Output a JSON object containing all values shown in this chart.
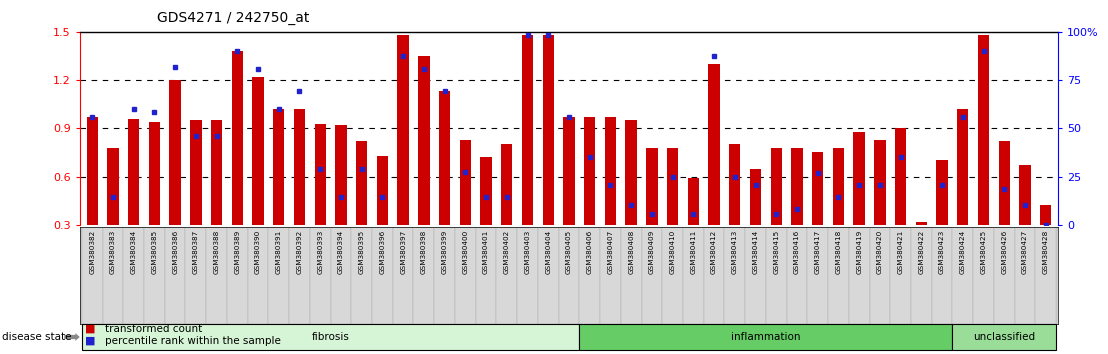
{
  "title": "GDS4271 / 242750_at",
  "samples": [
    "GSM380382",
    "GSM380383",
    "GSM380384",
    "GSM380385",
    "GSM380386",
    "GSM380387",
    "GSM380388",
    "GSM380389",
    "GSM380390",
    "GSM380391",
    "GSM380392",
    "GSM380393",
    "GSM380394",
    "GSM380395",
    "GSM380396",
    "GSM380397",
    "GSM380398",
    "GSM380399",
    "GSM380400",
    "GSM380401",
    "GSM380402",
    "GSM380403",
    "GSM380404",
    "GSM380405",
    "GSM380406",
    "GSM380407",
    "GSM380408",
    "GSM380409",
    "GSM380410",
    "GSM380411",
    "GSM380412",
    "GSM380413",
    "GSM380414",
    "GSM380415",
    "GSM380416",
    "GSM380417",
    "GSM380418",
    "GSM380419",
    "GSM380420",
    "GSM380421",
    "GSM380422",
    "GSM380423",
    "GSM380424",
    "GSM380425",
    "GSM380426",
    "GSM380427",
    "GSM380428"
  ],
  "red_values": [
    0.97,
    0.78,
    0.96,
    0.94,
    1.2,
    0.95,
    0.95,
    1.38,
    1.22,
    1.02,
    1.02,
    0.93,
    0.92,
    0.82,
    0.73,
    1.48,
    1.35,
    1.13,
    0.83,
    0.72,
    0.8,
    1.48,
    1.48,
    0.97,
    0.97,
    0.97,
    0.95,
    0.78,
    0.78,
    0.59,
    1.3,
    0.8,
    0.65,
    0.78,
    0.78,
    0.75,
    0.78,
    0.88,
    0.83,
    0.9,
    0.32,
    0.7,
    1.02,
    1.48,
    0.82,
    0.67,
    0.42
  ],
  "blue_values": [
    0.97,
    0.47,
    1.02,
    1.0,
    1.28,
    0.85,
    0.85,
    1.38,
    1.27,
    1.02,
    1.13,
    0.65,
    0.47,
    0.65,
    0.47,
    1.35,
    1.27,
    1.13,
    0.63,
    0.47,
    0.47,
    1.48,
    1.48,
    0.97,
    0.72,
    0.55,
    0.42,
    0.37,
    0.6,
    0.37,
    1.35,
    0.6,
    0.55,
    0.37,
    0.4,
    0.62,
    0.47,
    0.55,
    0.55,
    0.72,
    0.18,
    0.55,
    0.97,
    1.38,
    0.52,
    0.42,
    0.3
  ],
  "groups": [
    {
      "label": "fibrosis",
      "start": 0,
      "end": 23,
      "color": "#d6f5d6"
    },
    {
      "label": "inflammation",
      "start": 24,
      "end": 41,
      "color": "#66cc66"
    },
    {
      "label": "unclassified",
      "start": 42,
      "end": 46,
      "color": "#99dd99"
    }
  ],
  "ylim": [
    0.3,
    1.5
  ],
  "yticks_left": [
    0.3,
    0.6,
    0.9,
    1.2,
    1.5
  ],
  "yticks_right_pos": [
    0.3,
    0.6,
    0.9,
    1.2,
    1.5
  ],
  "yticks_right_labels": [
    "0",
    "25",
    "50",
    "75",
    "100%"
  ],
  "hlines": [
    0.6,
    0.9,
    1.2
  ],
  "bar_color": "#cc0000",
  "dot_color": "#2222cc",
  "title_fontsize": 10,
  "legend_items": [
    "transformed count",
    "percentile rank within the sample"
  ],
  "disease_state_label": "disease state",
  "bg_color": "#ffffff"
}
